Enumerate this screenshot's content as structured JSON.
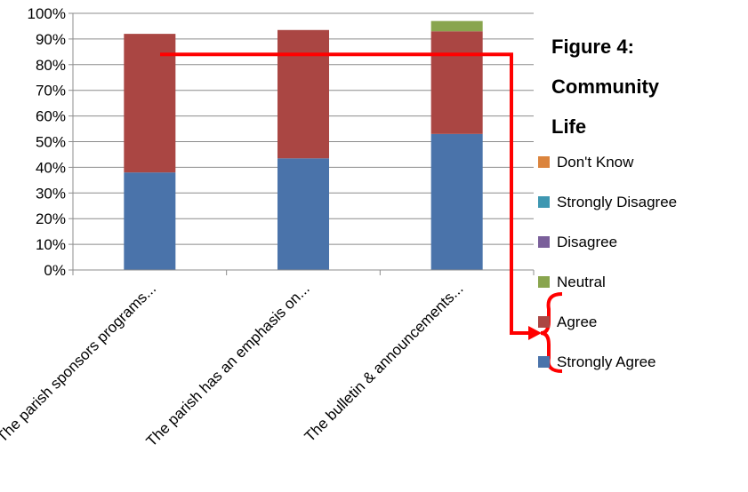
{
  "chart_data": {
    "type": "bar",
    "stacked": true,
    "title": "Figure 4: Community Life",
    "title_lines": [
      "Figure 4:",
      "Community",
      "Life"
    ],
    "categories": [
      "The parish sponsors programs...",
      "The parish has an emphasis on...",
      "The bulletin & announcements..."
    ],
    "series": [
      {
        "name": "Strongly Agree",
        "color": "#4a73aa",
        "values": [
          38,
          43.5,
          53
        ]
      },
      {
        "name": "Agree",
        "color": "#aa4643",
        "values": [
          54,
          50,
          40
        ]
      },
      {
        "name": "Neutral",
        "color": "#89a54e",
        "values": [
          0,
          0,
          4
        ]
      },
      {
        "name": "Neutral",
        "color": "#89a54e",
        "values": [
          0,
          0,
          0
        ]
      }
    ],
    "ylim": [
      0,
      100
    ],
    "y_ticks": [
      "0%",
      "10%",
      "20%",
      "30%",
      "40%",
      "50%",
      "60%",
      "70%",
      "80%",
      "90%",
      "100%"
    ],
    "grid": true,
    "legend_position": "right",
    "annotation": {
      "type": "bracket-arrow",
      "threshold": 84,
      "points_to": [
        "Agree",
        "Strongly Agree"
      ],
      "color": "#ff0000"
    }
  }
}
